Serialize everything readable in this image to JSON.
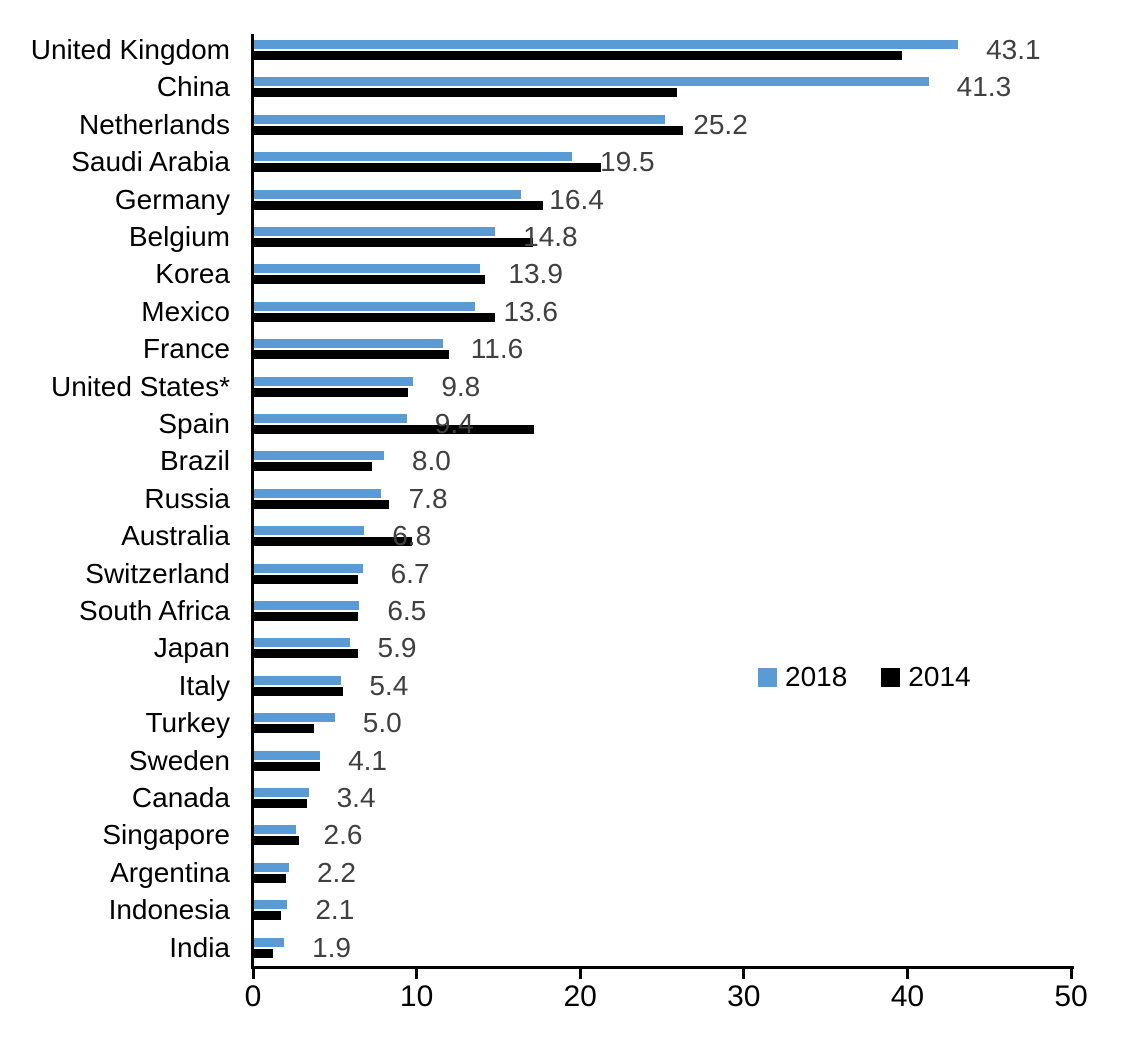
{
  "chart_data": {
    "type": "bar",
    "orientation": "horizontal",
    "title": "",
    "xlabel": "",
    "ylabel": "",
    "xlim": [
      0,
      50
    ],
    "x_ticks": [
      0,
      10,
      20,
      30,
      40,
      50
    ],
    "grid": false,
    "legend_position": "middle-right",
    "categories": [
      "United Kingdom",
      "China",
      "Netherlands",
      "Saudi Arabia",
      "Germany",
      "Belgium",
      "Korea",
      "Mexico",
      "France",
      "United States*",
      "Spain",
      "Brazil",
      "Russia",
      "Australia",
      "Switzerland",
      "South Africa",
      "Japan",
      "Italy",
      "Turkey",
      "Sweden",
      "Canada",
      "Singapore",
      "Argentina",
      "Indonesia",
      "India"
    ],
    "series": [
      {
        "name": "2018",
        "color": "#5B9BD5",
        "values": [
          43.1,
          41.3,
          25.2,
          19.5,
          16.4,
          14.8,
          13.9,
          13.6,
          11.6,
          9.8,
          9.4,
          8.0,
          7.8,
          6.8,
          6.7,
          6.5,
          5.9,
          5.4,
          5.0,
          4.1,
          3.4,
          2.6,
          2.2,
          2.1,
          1.9
        ]
      },
      {
        "name": "2014",
        "color": "#000000",
        "values": [
          39.7,
          25.9,
          26.3,
          21.3,
          17.7,
          17.1,
          14.2,
          14.8,
          12.0,
          9.5,
          17.2,
          7.3,
          8.3,
          9.7,
          6.4,
          6.4,
          6.4,
          5.5,
          3.7,
          4.1,
          3.3,
          2.8,
          2.0,
          1.7,
          1.2
        ]
      }
    ],
    "data_labels": [
      "43.1",
      "41.3",
      "25.2",
      "19.5",
      "16.4",
      "14.8",
      "13.9",
      "13.6",
      "11.6",
      "9.8",
      "9.4",
      "8.0",
      "7.8",
      "6.8",
      "6.7",
      "6.5",
      "5.9",
      "5.4",
      "5.0",
      "4.1",
      "3.4",
      "2.6",
      "2.2",
      "2.1",
      "1.9"
    ],
    "data_label_color": "#404040",
    "axis_color": "#000000"
  }
}
